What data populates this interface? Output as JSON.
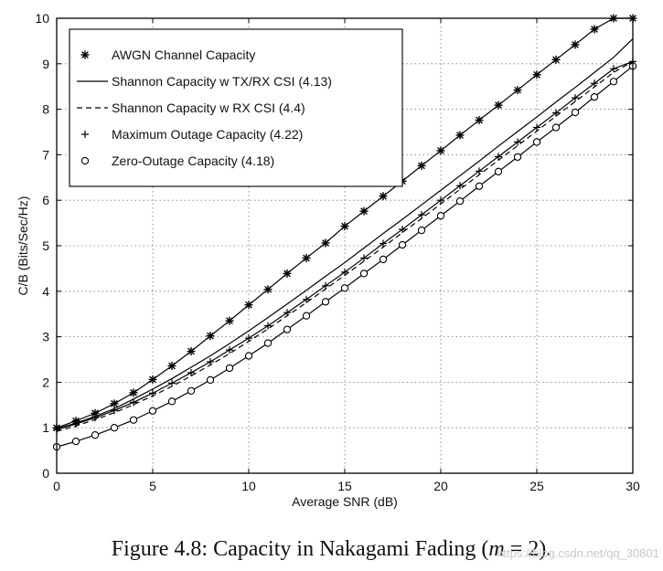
{
  "chart_data": {
    "type": "line",
    "title": "",
    "xlabel": "Average SNR (dB)",
    "ylabel": "C/B (Bits/Sec/Hz)",
    "xlim": [
      0,
      30
    ],
    "ylim": [
      0,
      10
    ],
    "xticks": [
      0,
      5,
      10,
      15,
      20,
      25,
      30
    ],
    "yticks": [
      0,
      1,
      2,
      3,
      4,
      5,
      6,
      7,
      8,
      9,
      10
    ],
    "grid": true,
    "legend_position": "top-left",
    "x": [
      0,
      1,
      2,
      3,
      4,
      5,
      6,
      7,
      8,
      9,
      10,
      11,
      12,
      13,
      14,
      15,
      16,
      17,
      18,
      19,
      20,
      21,
      22,
      23,
      24,
      25,
      26,
      27,
      28,
      29,
      30
    ],
    "series": [
      {
        "name": "AWGN Channel Capacity",
        "style": "asterisk-markers",
        "values": [
          1.0,
          1.15,
          1.32,
          1.53,
          1.77,
          2.06,
          2.36,
          2.68,
          3.02,
          3.35,
          3.7,
          4.04,
          4.39,
          4.73,
          5.06,
          5.43,
          5.76,
          6.09,
          6.42,
          6.76,
          7.09,
          7.43,
          7.76,
          8.09,
          8.42,
          8.76,
          9.09,
          9.42,
          9.76,
          10.0,
          10.0
        ]
      },
      {
        "name": "Shannon Capacity w TX/RX CSI (4.13)",
        "style": "solid",
        "values": [
          0.98,
          1.1,
          1.25,
          1.42,
          1.63,
          1.85,
          2.08,
          2.33,
          2.58,
          2.85,
          3.13,
          3.42,
          3.72,
          4.02,
          4.33,
          4.63,
          4.95,
          5.27,
          5.58,
          5.9,
          6.22,
          6.54,
          6.86,
          7.19,
          7.51,
          7.83,
          8.16,
          8.48,
          8.81,
          9.14,
          9.55
        ]
      },
      {
        "name": "Shannon Capacity w RX CSI (4.4)",
        "style": "dashed",
        "values": [
          0.92,
          1.04,
          1.18,
          1.33,
          1.51,
          1.7,
          1.91,
          2.14,
          2.38,
          2.63,
          2.9,
          3.17,
          3.46,
          3.75,
          4.05,
          4.35,
          4.66,
          4.97,
          5.29,
          5.6,
          5.92,
          6.24,
          6.56,
          6.88,
          7.2,
          7.52,
          7.85,
          8.17,
          8.49,
          8.81,
          9.05
        ]
      },
      {
        "name": "Maximum Outage Capacity (4.22)",
        "style": "plus-markers",
        "values": [
          0.96,
          1.08,
          1.22,
          1.38,
          1.56,
          1.76,
          1.98,
          2.21,
          2.45,
          2.71,
          2.97,
          3.24,
          3.53,
          3.82,
          4.12,
          4.42,
          4.73,
          5.05,
          5.36,
          5.68,
          6.0,
          6.32,
          6.64,
          6.96,
          7.28,
          7.6,
          7.92,
          8.25,
          8.57,
          8.89,
          9.05
        ]
      },
      {
        "name": "Zero-Outage Capacity (4.18)",
        "style": "circle-markers",
        "values": [
          0.58,
          0.7,
          0.84,
          1.0,
          1.17,
          1.37,
          1.58,
          1.81,
          2.05,
          2.31,
          2.58,
          2.86,
          3.16,
          3.46,
          3.77,
          4.07,
          4.39,
          4.7,
          5.02,
          5.34,
          5.66,
          5.98,
          6.31,
          6.63,
          6.95,
          7.28,
          7.6,
          7.93,
          8.27,
          8.61,
          8.95
        ]
      }
    ]
  },
  "caption": {
    "prefix": "Figure 4.8: Capacity in Nakagami Fading (",
    "math_var": "m",
    "suffix": " = 2)."
  },
  "watermark": "https://blog.csdn.net/qq_30801"
}
